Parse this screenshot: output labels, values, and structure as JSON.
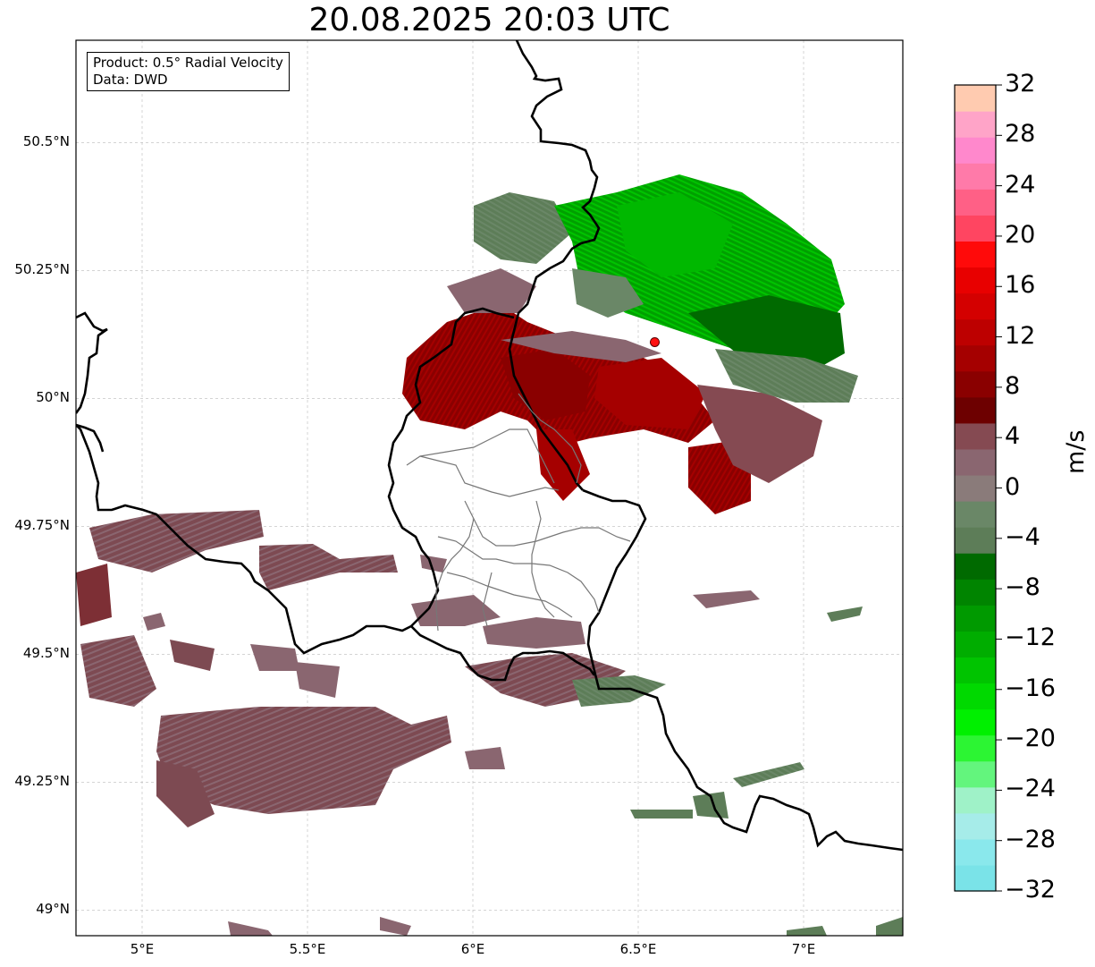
{
  "title": "20.08.2025 20:03 UTC",
  "info": {
    "product": "Product: 0.5° Radial Velocity",
    "source": "Data: DWD"
  },
  "map": {
    "lon_range": [
      4.8,
      7.3
    ],
    "lat_range": [
      48.95,
      50.7
    ],
    "lat_ticks": [
      {
        "value": 50.5,
        "label": "50.5°N"
      },
      {
        "value": 50.25,
        "label": "50.25°N"
      },
      {
        "value": 50.0,
        "label": "50°N"
      },
      {
        "value": 49.75,
        "label": "49.75°N"
      },
      {
        "value": 49.5,
        "label": "49.5°N"
      },
      {
        "value": 49.25,
        "label": "49.25°N"
      },
      {
        "value": 49.0,
        "label": "49°N"
      }
    ],
    "lon_ticks": [
      {
        "value": 5.0,
        "label": "5°E"
      },
      {
        "value": 5.5,
        "label": "5.5°E"
      },
      {
        "value": 6.0,
        "label": "6°E"
      },
      {
        "value": 6.5,
        "label": "6.5°E"
      },
      {
        "value": 7.0,
        "label": "7°E"
      }
    ],
    "radar_site": {
      "lon": 6.55,
      "lat": 50.11,
      "color": "#ff1010"
    },
    "gridlines": true
  },
  "colorbar": {
    "unit": "m/s",
    "range": [
      -32,
      32
    ],
    "tick_labels": [
      "32",
      "28",
      "24",
      "20",
      "16",
      "12",
      "8",
      "4",
      "0",
      "−4",
      "−8",
      "−12",
      "−16",
      "−20",
      "−24",
      "−28",
      "−32"
    ],
    "colors": [
      "#7ae3e8",
      "#8ae8ec",
      "#a6ece9",
      "#9ff2c8",
      "#63f57d",
      "#2cf533",
      "#00f000",
      "#00d900",
      "#00c400",
      "#00ad00",
      "#009a00",
      "#008400",
      "#006a00",
      "#5d7d58",
      "#6a8767",
      "#8a7b7a",
      "#8a6670",
      "#854a52",
      "#6d0000",
      "#8a0000",
      "#a50000",
      "#bd0000",
      "#d40000",
      "#e80000",
      "#ff0a0a",
      "#ff4561",
      "#ff6086",
      "#ff7aa9",
      "#ff88cc",
      "#ffa4c8",
      "#ffcbb0"
    ]
  },
  "precip_fields": [
    {
      "name": "western-echoes",
      "lon": 5.1,
      "lat": 49.45,
      "value": 3
    },
    {
      "name": "radar-near-field-negative",
      "lon": 6.8,
      "lat": 50.25,
      "value": -12
    },
    {
      "name": "radar-near-field-positive",
      "lon": 6.4,
      "lat": 50.0,
      "value": 9
    }
  ]
}
